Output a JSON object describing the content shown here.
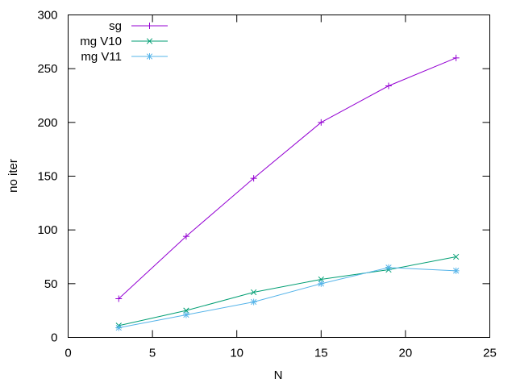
{
  "chart_data": {
    "type": "line",
    "title": "",
    "xlabel": "N",
    "ylabel": "no iter",
    "xlim": [
      0,
      25
    ],
    "ylim": [
      0,
      300
    ],
    "xticks": [
      0,
      5,
      10,
      15,
      20,
      25
    ],
    "yticks": [
      0,
      50,
      100,
      150,
      200,
      250,
      300
    ],
    "grid": false,
    "legend_position": "top-left",
    "series": [
      {
        "name": "sg",
        "color": "#9400d3",
        "marker": "plus",
        "x": [
          3,
          7,
          11,
          15,
          19,
          23
        ],
        "y": [
          36,
          94,
          148,
          200,
          234,
          260
        ]
      },
      {
        "name": "mg V10",
        "color": "#009e73",
        "marker": "cross",
        "x": [
          3,
          7,
          11,
          15,
          19,
          23
        ],
        "y": [
          11,
          25,
          42,
          54,
          63,
          75
        ]
      },
      {
        "name": "mg V11",
        "color": "#56b4e9",
        "marker": "star",
        "x": [
          3,
          7,
          11,
          15,
          19,
          23
        ],
        "y": [
          9,
          21,
          33,
          50,
          65,
          62
        ]
      }
    ]
  }
}
